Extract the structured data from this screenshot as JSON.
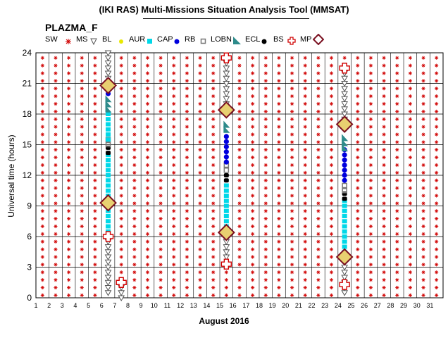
{
  "header": {
    "title": "(IKI RAS) Multi-Missions Situation Analysis Tool (MMSAT)",
    "mission": "PLAZMA_F"
  },
  "legend": [
    {
      "label": "SW",
      "icon": "solar-wind-asterisk-icon",
      "color": "#d00000"
    },
    {
      "label": "MS",
      "icon": "magnetosheath-triangle-icon",
      "color": "#555555"
    },
    {
      "label": "BL",
      "icon": "boundary-layer-dot-icon",
      "color": "#e8e800"
    },
    {
      "label": "AUR",
      "icon": "aurora-square-icon",
      "color": "#00d8e8"
    },
    {
      "label": "CAP",
      "icon": "polar-cap-dot-icon",
      "color": "#0000dd"
    },
    {
      "label": "RB",
      "icon": "radiation-belt-square-icon",
      "color": "#777777"
    },
    {
      "label": "LOBN",
      "icon": "lobe-triangle-icon",
      "color": "#2e8b8b"
    },
    {
      "label": "ECL",
      "icon": "eclipse-dot-icon",
      "color": "#000000"
    },
    {
      "label": "BS",
      "icon": "bow-shock-cross-icon",
      "color": "#d00000"
    },
    {
      "label": "MP",
      "icon": "magnetopause-diamond-icon",
      "color": "#7a1020"
    }
  ],
  "axes": {
    "ylabel": "Universal time (hours)",
    "xlabel": "August 2016",
    "y_ticks": [
      "0",
      "3",
      "6",
      "9",
      "12",
      "15",
      "18",
      "21",
      "24"
    ],
    "x_ticks": [
      "1",
      "2",
      "3",
      "4",
      "5",
      "6",
      "7",
      "8",
      "9",
      "10",
      "11",
      "12",
      "13",
      "14",
      "15",
      "16",
      "17",
      "18",
      "19",
      "20",
      "21",
      "22",
      "23",
      "24",
      "25",
      "26",
      "27",
      "28",
      "29",
      "30",
      "31"
    ]
  },
  "chart_data": {
    "type": "scatter",
    "title": "(IKI RAS) Multi-Missions Situation Analysis Tool (MMSAT)",
    "xlabel": "August 2016",
    "ylabel": "Universal time (hours)",
    "xlim": [
      1,
      32
    ],
    "ylim": [
      0,
      24
    ],
    "grid": true,
    "legend_position": "top",
    "background_region": "SW",
    "orbit_passes": [
      {
        "day": 6.5,
        "segments": [
          {
            "region": "MS",
            "from": 0.5,
            "to": 5.5
          },
          {
            "region": "AUR",
            "from": 6.5,
            "to": 14.0
          },
          {
            "region": "ECL",
            "from": 14.2,
            "to": 14.8
          },
          {
            "region": "RB",
            "from": 15.0,
            "to": 15.5
          },
          {
            "region": "AUR",
            "from": 15.5,
            "to": 18.0
          },
          {
            "region": "LOBN",
            "from": 18.5,
            "to": 19.5
          },
          {
            "region": "CAP",
            "from": 20.0,
            "to": 20.5
          },
          {
            "region": "MS",
            "from": 21.5,
            "to": 24.0
          }
        ],
        "bow_shocks": [
          6.0
        ],
        "magnetopause": [
          9.3,
          20.8
        ]
      },
      {
        "day": 7.5,
        "segments": [
          {
            "region": "MS",
            "from": 0.0,
            "to": 1.0
          }
        ],
        "bow_shocks": [
          1.5
        ],
        "magnetopause": []
      },
      {
        "day": 15.5,
        "segments": [
          {
            "region": "MS",
            "from": 4.0,
            "to": 6.0
          },
          {
            "region": "AUR",
            "from": 7.0,
            "to": 11.0
          },
          {
            "region": "ECL",
            "from": 11.5,
            "to": 12.2
          },
          {
            "region": "RB",
            "from": 12.5,
            "to": 13.0
          },
          {
            "region": "CAP",
            "from": 13.3,
            "to": 16.0
          },
          {
            "region": "LOBN",
            "from": 16.5,
            "to": 17.3
          },
          {
            "region": "MS",
            "from": 19.0,
            "to": 23.0
          }
        ],
        "bow_shocks": [
          3.3,
          23.5
        ],
        "magnetopause": [
          6.4,
          18.4
        ]
      },
      {
        "day": 24.5,
        "segments": [
          {
            "region": "MS",
            "from": 0.5,
            "to": 3.0
          },
          {
            "region": "AUR",
            "from": 4.5,
            "to": 9.5
          },
          {
            "region": "ECL",
            "from": 9.7,
            "to": 10.3
          },
          {
            "region": "RB",
            "from": 10.5,
            "to": 11.0
          },
          {
            "region": "CAP",
            "from": 11.5,
            "to": 14.5
          },
          {
            "region": "LOBN",
            "from": 14.7,
            "to": 16.0
          },
          {
            "region": "MS",
            "from": 17.5,
            "to": 22.0
          }
        ],
        "bow_shocks": [
          1.3,
          22.5
        ],
        "magnetopause": [
          4.0,
          17.0
        ]
      }
    ]
  },
  "style": {
    "sw_color": "#d00000",
    "ms_color": "#555555",
    "aur_color": "#00d8e8",
    "cap_color": "#0000dd",
    "rb_color": "#777777",
    "lobn_color": "#2e8b8b",
    "ecl_color": "#000000",
    "bs_color": "#d00000",
    "mp_fill": "#e8d070",
    "mp_stroke": "#7a1020"
  }
}
